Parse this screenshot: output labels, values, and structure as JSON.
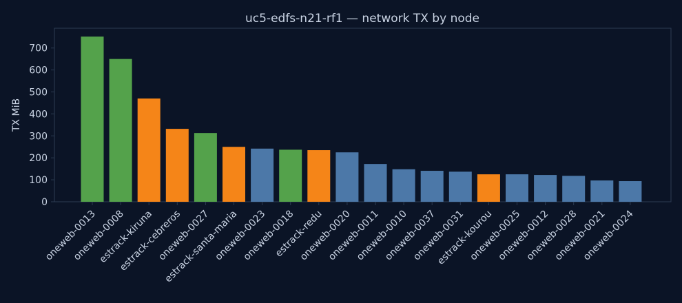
{
  "chart_data": {
    "type": "bar",
    "title": "uc5-edfs-n21-rf1 — network TX by node",
    "xlabel": "",
    "ylabel": "TX MiB",
    "ylim": [
      0,
      790
    ],
    "yticks": [
      0,
      100,
      200,
      300,
      400,
      500,
      600,
      700
    ],
    "grid": false,
    "legend": "none",
    "categories": [
      "oneweb-0013",
      "oneweb-0008",
      "estrack-kiruna",
      "estrack-cebreros",
      "oneweb-0027",
      "estrack-santa-maria",
      "oneweb-0023",
      "oneweb-0018",
      "estrack-redu",
      "oneweb-0020",
      "oneweb-0011",
      "oneweb-0010",
      "oneweb-0037",
      "oneweb-0031",
      "estrack-kourou",
      "oneweb-0025",
      "oneweb-0012",
      "oneweb-0028",
      "oneweb-0021",
      "oneweb-0024"
    ],
    "values": [
      752,
      650,
      470,
      332,
      313,
      250,
      242,
      237,
      235,
      225,
      172,
      148,
      141,
      137,
      125,
      125,
      122,
      118,
      97,
      94
    ],
    "bar_colors": [
      "#54a24b",
      "#54a24b",
      "#f58518",
      "#f58518",
      "#54a24b",
      "#f58518",
      "#4c78a8",
      "#54a24b",
      "#f58518",
      "#4c78a8",
      "#4c78a8",
      "#4c78a8",
      "#4c78a8",
      "#4c78a8",
      "#f58518",
      "#4c78a8",
      "#4c78a8",
      "#4c78a8",
      "#4c78a8",
      "#4c78a8"
    ]
  },
  "colors": {
    "background": "#0b1426",
    "axes": "#2c3b52",
    "text": "#c9d3e3"
  }
}
